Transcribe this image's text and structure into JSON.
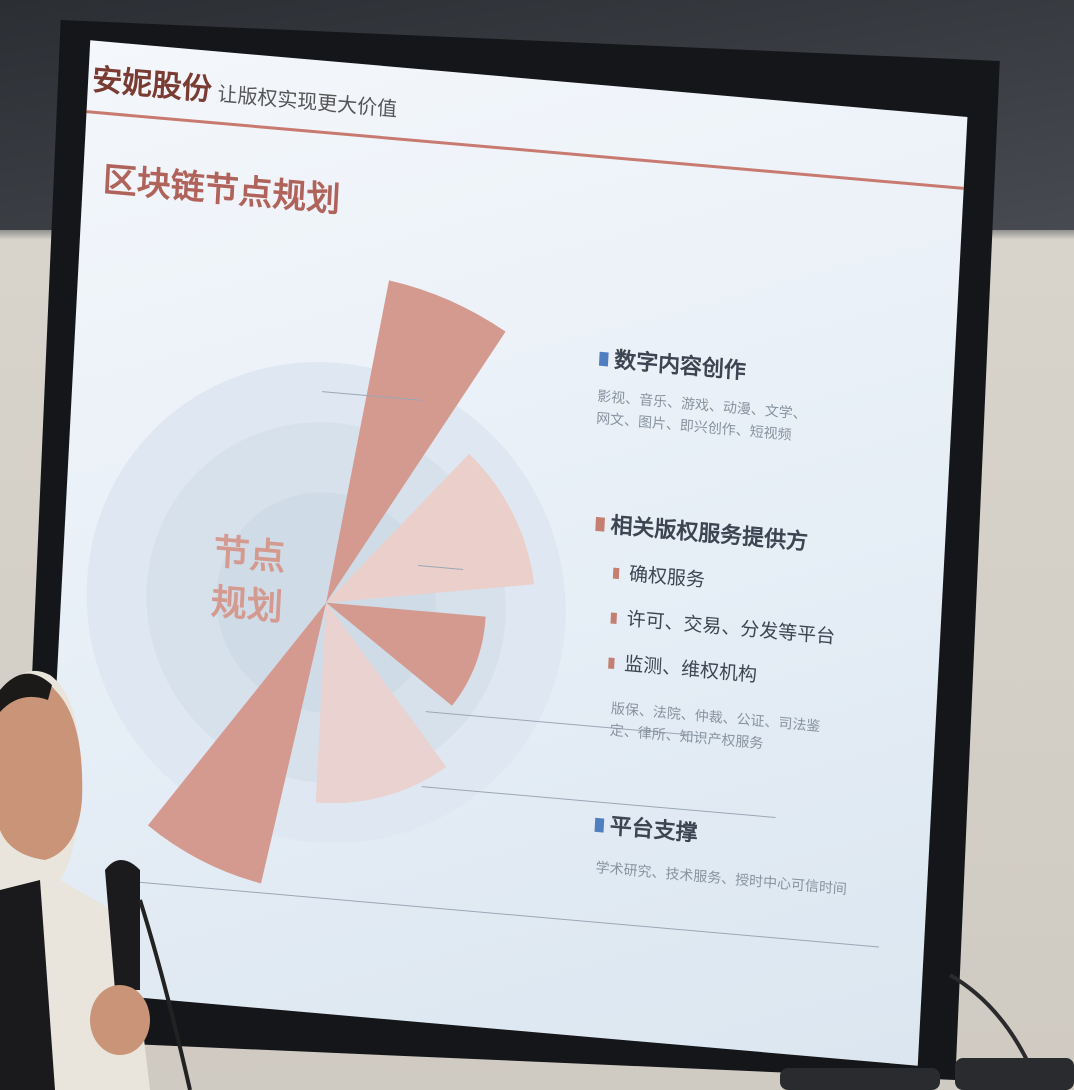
{
  "header": {
    "logo": "安妮股份",
    "slogan": "让版权实现更大价值"
  },
  "slide": {
    "title": "区块链节点规划",
    "center_label": [
      "节点",
      "规划"
    ],
    "sections": [
      {
        "heading": "数字内容创作",
        "detail": "影视、音乐、游戏、动漫、文学、网文、图片、即兴创作、短视频"
      },
      {
        "heading": "相关版权服务提供方",
        "items": [
          "确权服务",
          "许可、交易、分发等平台",
          "监测、维权机构"
        ],
        "detail": "版保、法院、仲裁、公证、司法鉴定、律所、知识产权服务"
      },
      {
        "heading": "平台支撑",
        "detail": "学术研究、技术服务、授时中心可信时间"
      }
    ]
  }
}
